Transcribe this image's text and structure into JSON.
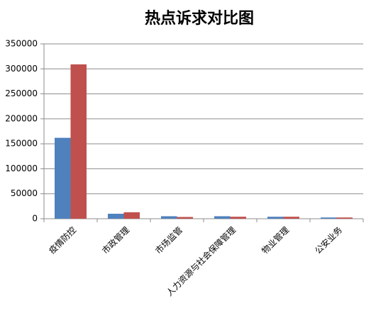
{
  "chart_data": {
    "type": "bar",
    "title": "热点诉求对比图",
    "categories": [
      "疫情防控",
      "市政管理",
      "市场监管",
      "人力资源与社会保障管理",
      "物业管理",
      "公安业务"
    ],
    "series": [
      {
        "color": "#4f81bd",
        "values": [
          162000,
          10000,
          5000,
          5000,
          4000,
          2500
        ]
      },
      {
        "color": "#c0504d",
        "values": [
          309000,
          13000,
          3500,
          4000,
          4000,
          2500
        ]
      }
    ],
    "ylim": [
      0,
      350000
    ],
    "yticks": [
      0,
      50000,
      100000,
      150000,
      200000,
      250000,
      300000,
      350000
    ],
    "grid": true
  }
}
